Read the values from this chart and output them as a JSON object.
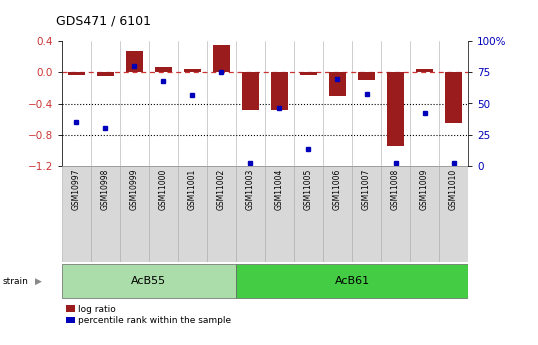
{
  "title": "GDS471 / 6101",
  "samples": [
    "GSM10997",
    "GSM10998",
    "GSM10999",
    "GSM11000",
    "GSM11001",
    "GSM11002",
    "GSM11003",
    "GSM11004",
    "GSM11005",
    "GSM11006",
    "GSM11007",
    "GSM11008",
    "GSM11009",
    "GSM11010"
  ],
  "log_ratio": [
    -0.03,
    -0.05,
    0.28,
    0.07,
    0.05,
    0.35,
    -0.48,
    -0.48,
    -0.03,
    -0.3,
    -0.1,
    -0.95,
    0.04,
    -0.65
  ],
  "pct_rank": [
    35,
    30,
    80,
    68,
    57,
    75,
    2,
    46,
    13,
    70,
    58,
    2,
    42,
    2
  ],
  "bar_color": "#9B1C1C",
  "dot_color": "#0000BB",
  "ref_color": "#CC3333",
  "ylim": [
    -1.2,
    0.4
  ],
  "y2lim": [
    0,
    100
  ],
  "yticks": [
    -1.2,
    -0.8,
    -0.4,
    0.0,
    0.4
  ],
  "y2ticks": [
    0,
    25,
    50,
    75,
    100
  ],
  "hlines": [
    -0.4,
    -0.8
  ],
  "acb55_count": 6,
  "acb61_count": 8,
  "acb55_color": "#AADDAA",
  "acb61_color": "#44CC44",
  "bg_color": "#FFFFFF",
  "cell_border": "#AAAAAA",
  "bar_width": 0.6
}
